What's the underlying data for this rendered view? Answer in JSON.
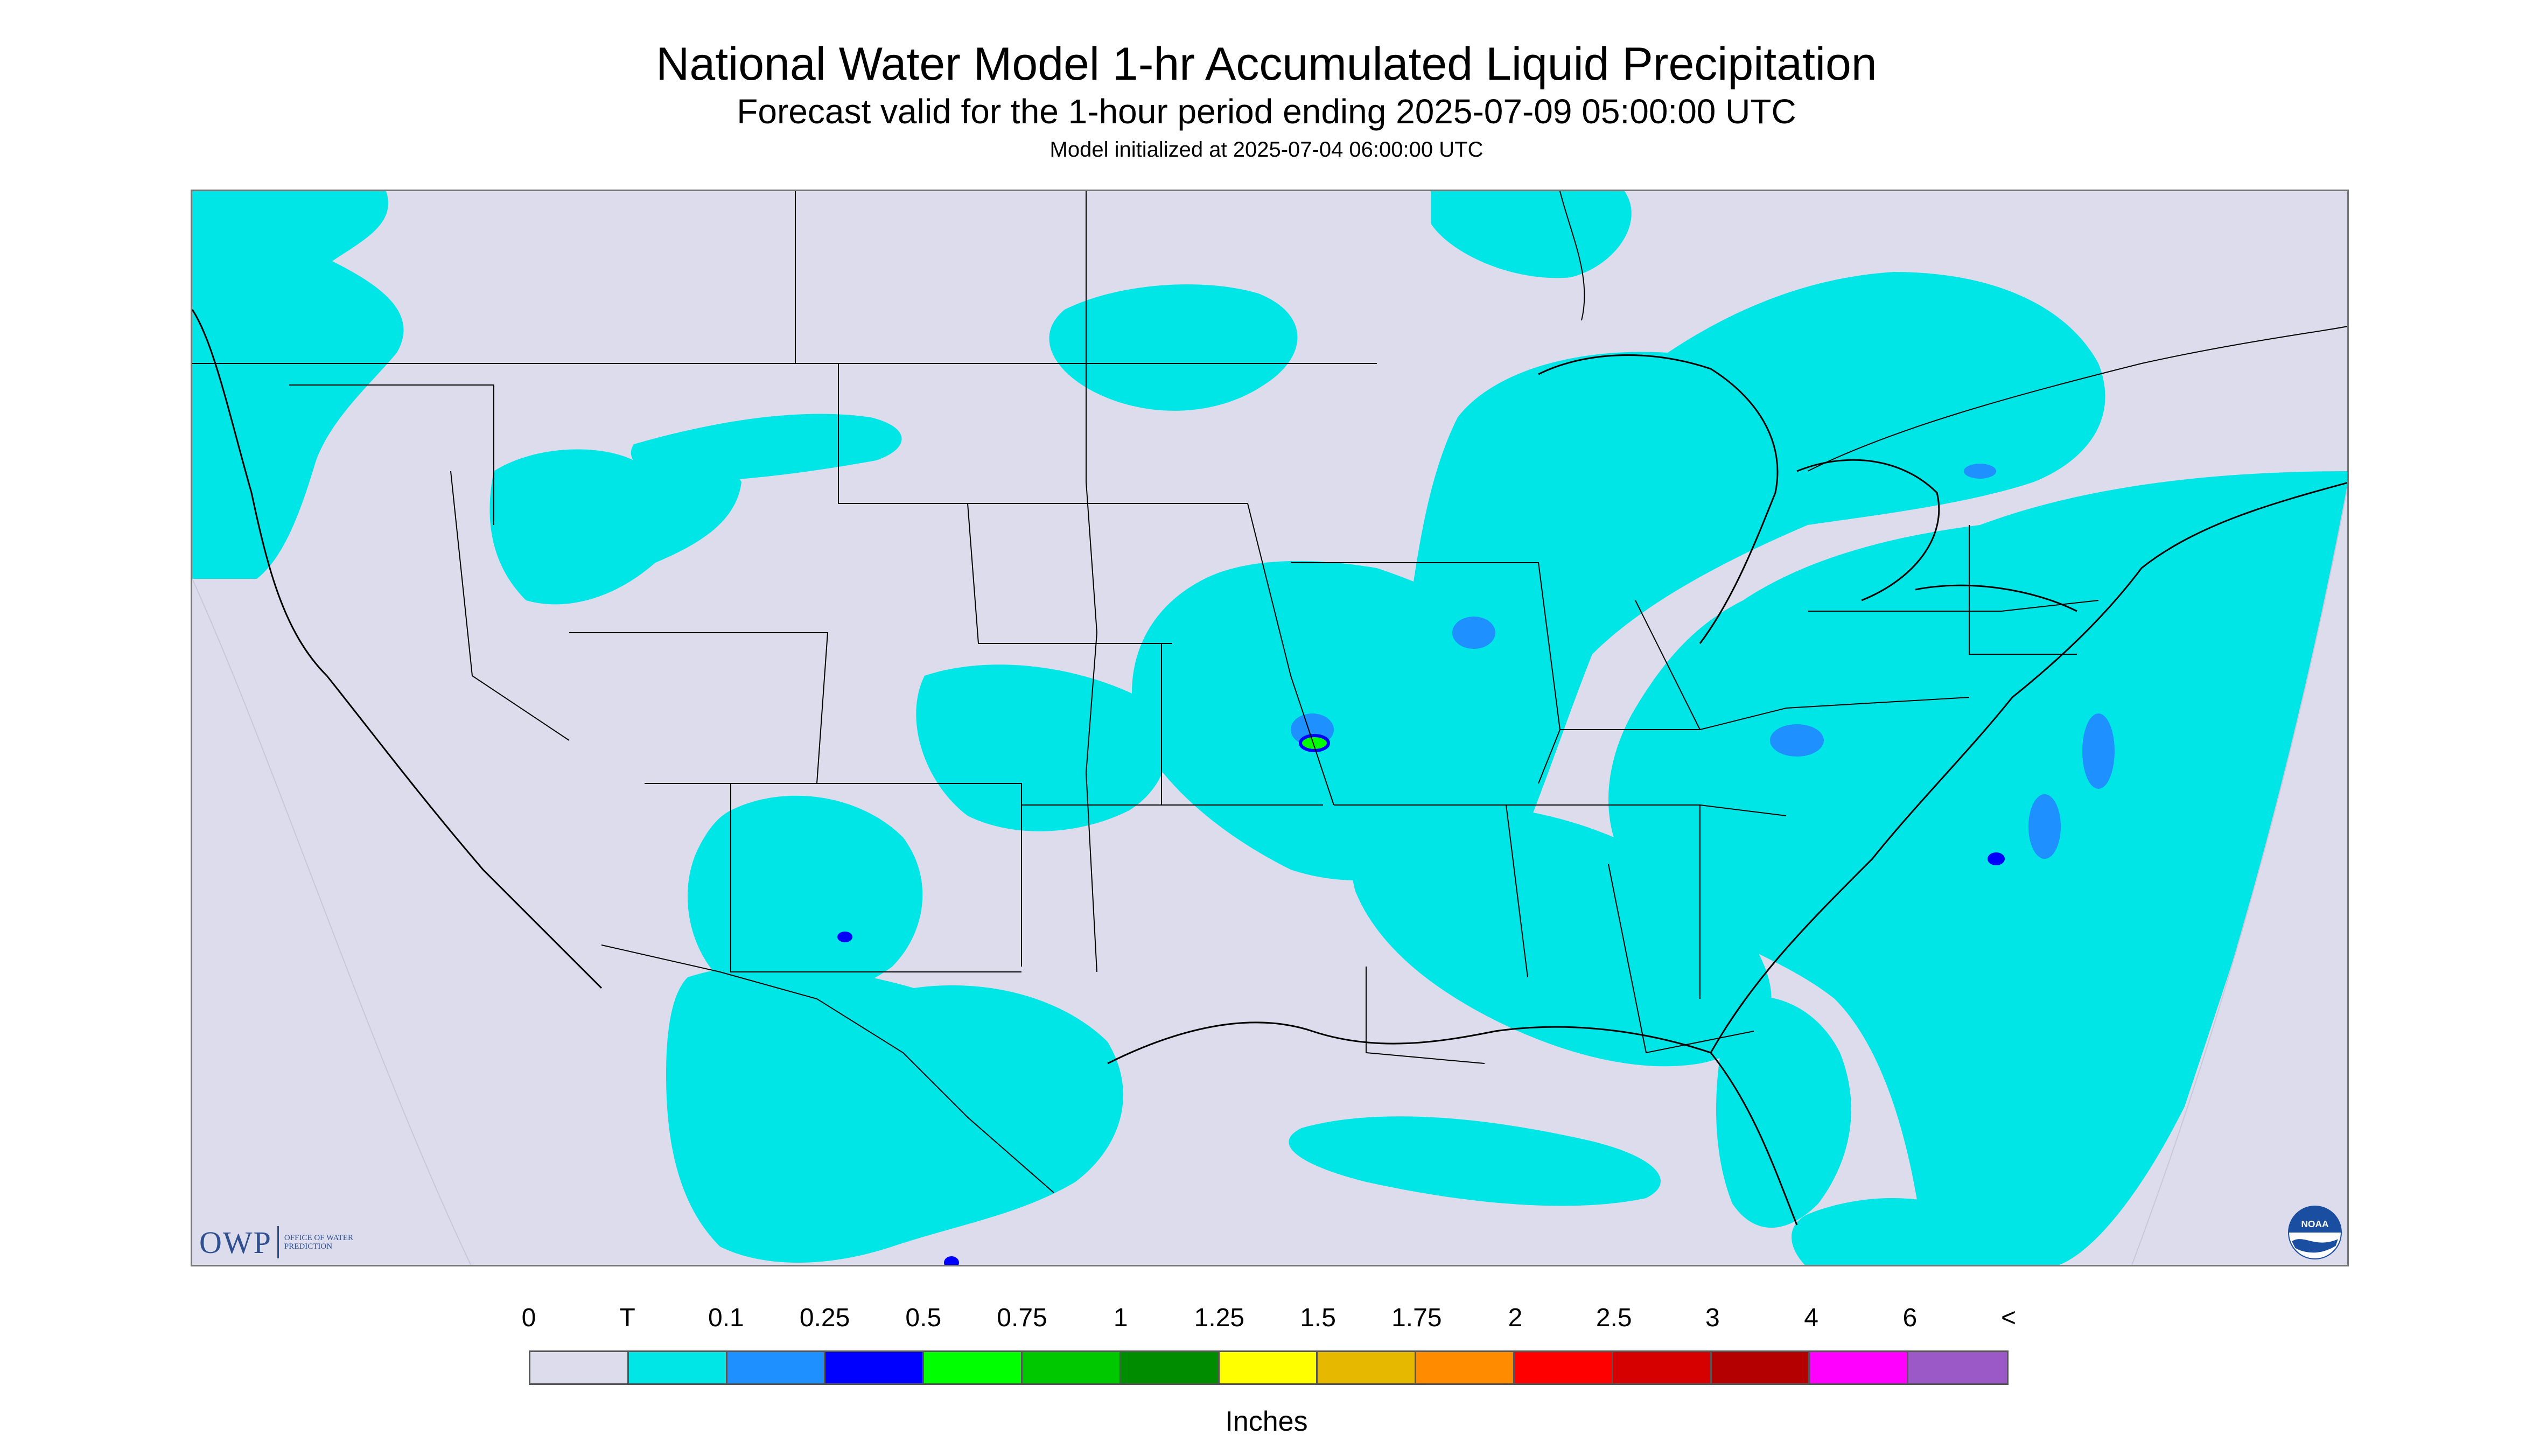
{
  "header": {
    "title": "National Water Model 1-hr Accumulated Liquid Precipitation",
    "subtitle": "Forecast valid for the 1-hour period ending 2025-07-09 05:00:00 UTC",
    "init_line": "Model initialized at 2025-07-04 06:00:00 UTC"
  },
  "map": {
    "background_color": "#dcdcec",
    "precip_color_trace": "#00e5e5",
    "precip_color_light": "#1e90ff",
    "precip_color_medium": "#0000ff",
    "precip_color_heavy": "#00ff00",
    "boundary_color": "#000000"
  },
  "logos": {
    "owp_letters": "OWP",
    "owp_text": "OFFICE OF WATER PREDICTION",
    "noaa_text": "NOAA"
  },
  "legend": {
    "labels": [
      "0",
      "T",
      "0.1",
      "0.25",
      "0.5",
      "0.75",
      "1",
      "1.25",
      "1.5",
      "1.75",
      "2",
      "2.5",
      "3",
      "4",
      "6",
      "<"
    ],
    "colors": [
      "#dcdcec",
      "#00e5e5",
      "#1e90ff",
      "#0000ff",
      "#00ff00",
      "#00c800",
      "#008c00",
      "#ffff00",
      "#e6b800",
      "#ff8c00",
      "#ff0000",
      "#d60000",
      "#b40000",
      "#ff00ff",
      "#9b59c8"
    ],
    "units": "Inches"
  }
}
